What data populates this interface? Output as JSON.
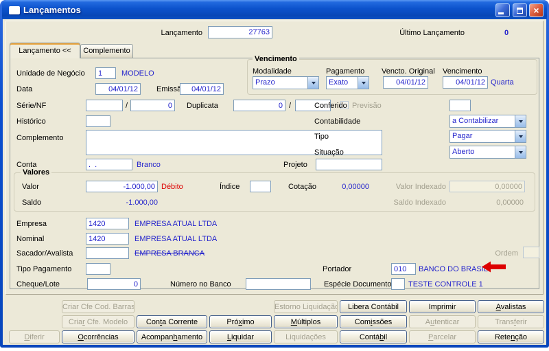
{
  "window": {
    "title": "Lançamentos",
    "close_glyph": "×"
  },
  "header": {
    "lancamento_label": "Lançamento",
    "lancamento_value": "27763",
    "ultimo_label": "Último Lançamento",
    "ultimo_value": "0"
  },
  "tabs": {
    "active": "Lançamento <<",
    "inactive": "Complemento"
  },
  "fields": {
    "unidade": {
      "label": "Unidade de Negócio",
      "value": "1",
      "desc": "MODELO"
    },
    "data": {
      "label": "Data",
      "value": "04/01/12"
    },
    "emissao": {
      "label": "Emissão",
      "value": "04/01/12"
    },
    "serie_nf": {
      "label": "Série/NF",
      "value1": "",
      "sep": "/",
      "value2": "0"
    },
    "duplicata": {
      "label": "Duplicata",
      "value1": "0",
      "sep": "/",
      "value2": ""
    },
    "previsao": {
      "label": "Previsão"
    },
    "conferido": {
      "label": "Conferido",
      "value": ""
    },
    "historico": {
      "label": "Histórico",
      "value": ""
    },
    "contabilidade": {
      "label": "Contabilidade",
      "value": "a Contabilizar"
    },
    "complemento": {
      "label": "Complemento",
      "value": ""
    },
    "tipo": {
      "label": "Tipo",
      "value": "Pagar"
    },
    "situacao": {
      "label": "Situação",
      "value": "Aberto"
    },
    "conta": {
      "label": "Conta",
      "value": ".  .",
      "desc": "Branco"
    },
    "projeto": {
      "label": "Projeto",
      "value": ""
    },
    "empresa": {
      "label": "Empresa",
      "code": "1420",
      "name": "EMPRESA ATUAL LTDA"
    },
    "nominal": {
      "label": "Nominal",
      "code": "1420",
      "name": "EMPRESA ATUAL LTDA"
    },
    "sacador": {
      "label": "Sacador/Avalista",
      "code": "",
      "name": "EMPRESA BRANCA"
    },
    "ordem": {
      "label": "Ordem",
      "value": ""
    },
    "tipo_pagamento": {
      "label": "Tipo Pagamento",
      "value": ""
    },
    "portador": {
      "label": "Portador",
      "code": "010",
      "name": "BANCO DO BRASIL"
    },
    "cheque_lote": {
      "label": "Cheque/Lote",
      "value": "0"
    },
    "numero_banco": {
      "label": "Número no Banco",
      "value": ""
    },
    "especie": {
      "label": "Espécie Documento",
      "value": "",
      "name": "TESTE CONTROLE 1"
    }
  },
  "vencimento": {
    "title": "Vencimento",
    "modalidade": {
      "label": "Modalidade",
      "value": "Prazo"
    },
    "pagamento": {
      "label": "Pagamento",
      "value": "Exato"
    },
    "vencto_original": {
      "label": "Vencto. Original",
      "value": "04/01/12"
    },
    "vencimento": {
      "label": "Vencimento",
      "value": "04/01/12",
      "weekday": "Quarta"
    }
  },
  "valores": {
    "title": "Valores",
    "valor": {
      "label": "Valor",
      "value": "-1.000,00",
      "flag": "Débito"
    },
    "indice": {
      "label": "Índice",
      "value": ""
    },
    "cotacao": {
      "label": "Cotação",
      "value": "0,00000"
    },
    "valor_indexado": {
      "label": "Valor Indexado",
      "value": "0,00000"
    },
    "saldo": {
      "label": "Saldo",
      "value": "-1.000,00"
    },
    "saldo_indexado": {
      "label": "Saldo Indexado",
      "value": "0,00000"
    }
  },
  "colors": {
    "value_blue": "#2424CC",
    "alert_red": "#DD0000",
    "titlebar_blue": "#0C52CC",
    "window_bg": "#ECE9D8"
  },
  "buttons": {
    "rows": [
      [
        null,
        {
          "label": "Criar Cfe Cod. Barras",
          "enabled": false
        },
        null,
        null,
        {
          "label": "Estorno Liquidação",
          "enabled": false
        },
        {
          "label": "Libera Contábil",
          "enabled": true
        },
        {
          "label": "Imprimir",
          "enabled": true
        },
        {
          "label": "Avalistas",
          "enabled": true,
          "u": 0
        }
      ],
      [
        null,
        {
          "label": "Criar Cfe. Modelo",
          "enabled": false,
          "u": 4
        },
        {
          "label": "Conta Corrente",
          "enabled": true,
          "u": 3
        },
        {
          "label": "Próximo",
          "enabled": true,
          "u": 3
        },
        {
          "label": "Múltiplos",
          "enabled": true,
          "u": 0
        },
        {
          "label": "Comissões",
          "enabled": true,
          "u": 3
        },
        {
          "label": "Autenticar",
          "enabled": false,
          "u": 1
        },
        {
          "label": "Transferir",
          "enabled": false,
          "u": 5
        }
      ],
      [
        {
          "label": "Diferir",
          "enabled": false,
          "u": 0
        },
        {
          "label": "Ocorrências",
          "enabled": true,
          "u": 0
        },
        {
          "label": "Acompanhamento",
          "enabled": true,
          "u": 7
        },
        {
          "label": "Liquidar",
          "enabled": true,
          "u": 0
        },
        {
          "label": "Liquidações",
          "enabled": false
        },
        {
          "label": "Contábil",
          "enabled": true,
          "u": 5
        },
        {
          "label": "Parcelar",
          "enabled": false,
          "u": 0
        },
        {
          "label": "Retenção",
          "enabled": true,
          "u": 4
        }
      ]
    ]
  }
}
